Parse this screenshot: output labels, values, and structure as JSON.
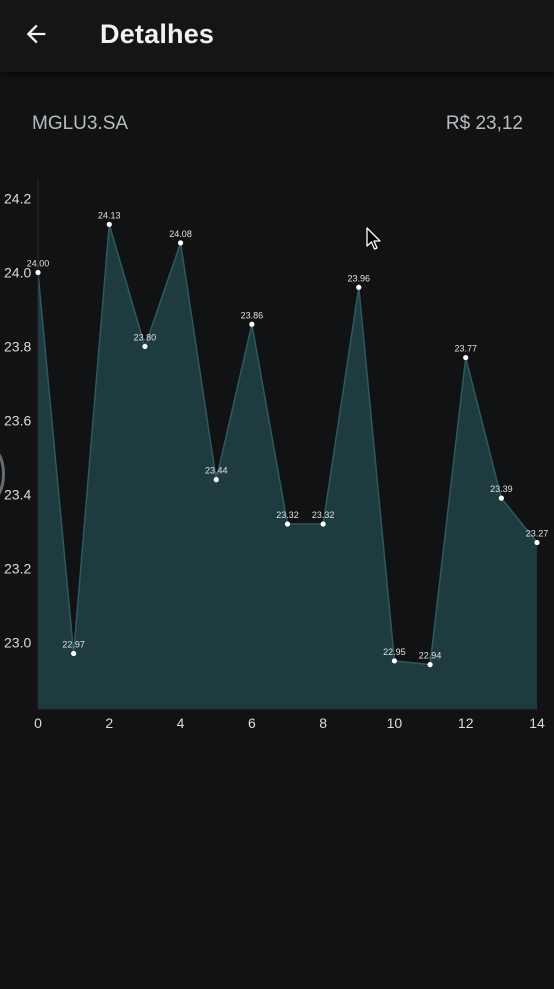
{
  "header": {
    "back_icon": "arrow-left-icon",
    "title": "Detalhes"
  },
  "stock": {
    "ticker": "MGLU3.SA",
    "price": "R$ 23,12"
  },
  "colors": {
    "background": "#111213",
    "area_fill": "#1e3b3f",
    "area_stroke": "#2c5a60",
    "point": "#ffffff",
    "label": "#e0e0e0"
  },
  "chart_data": {
    "type": "area",
    "x": [
      0,
      1,
      2,
      3,
      4,
      5,
      6,
      7,
      8,
      9,
      10,
      11,
      12,
      13,
      14
    ],
    "values": [
      24.0,
      22.97,
      24.13,
      23.8,
      24.08,
      23.44,
      23.86,
      23.32,
      23.32,
      23.96,
      22.95,
      22.94,
      23.77,
      23.39,
      23.27
    ],
    "point_labels": [
      "24.00",
      "22.97",
      "24.13",
      "23.80",
      "24.08",
      "23.44",
      "23.86",
      "23.32",
      "23.32",
      "23.96",
      "22.95",
      "22.94",
      "23.77",
      "23.39",
      "23.27"
    ],
    "x_ticks": [
      "0",
      "2",
      "4",
      "6",
      "8",
      "10",
      "12",
      "14"
    ],
    "y_ticks": [
      "23.0",
      "23.2",
      "23.4",
      "23.6",
      "23.8",
      "24.0",
      "24.2"
    ],
    "xlim": [
      0,
      14
    ],
    "ylim": [
      22.82,
      24.25
    ],
    "grid": false,
    "legend": "none"
  }
}
